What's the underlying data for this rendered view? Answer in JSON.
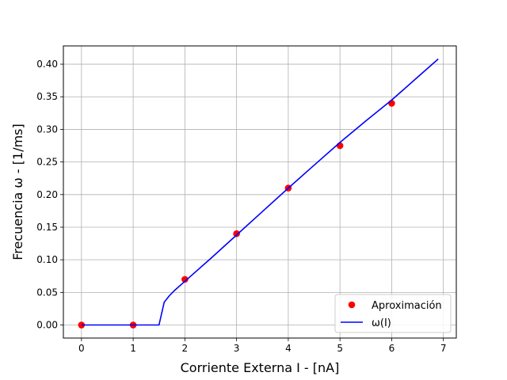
{
  "chart_data": {
    "type": "scatter",
    "title": "",
    "xlabel": "Corriente Externa I - [nA]",
    "ylabel": "Frecuencia ω - [1/ms]",
    "xlim": [
      -0.35,
      7.25
    ],
    "ylim": [
      -0.02,
      0.428
    ],
    "xticks": [
      0,
      1,
      2,
      3,
      4,
      5,
      6,
      7
    ],
    "yticks": [
      0.0,
      0.05,
      0.1,
      0.15,
      0.2,
      0.25,
      0.3,
      0.35,
      0.4
    ],
    "xtick_labels": [
      "0",
      "1",
      "2",
      "3",
      "4",
      "5",
      "6",
      "7"
    ],
    "ytick_labels": [
      "0.00",
      "0.05",
      "0.10",
      "0.15",
      "0.20",
      "0.25",
      "0.30",
      "0.35",
      "0.40"
    ],
    "grid": true,
    "legend_position": "lower-right",
    "series": [
      {
        "name": "Aproximación",
        "kind": "markers",
        "color": "#ff0000",
        "x": [
          0,
          1,
          2,
          3,
          4,
          5,
          6
        ],
        "y": [
          0.0,
          0.0,
          0.07,
          0.14,
          0.21,
          0.275,
          0.34
        ]
      },
      {
        "name": "ω(I)",
        "kind": "line",
        "color": "#0000ff",
        "x": [
          0,
          1,
          1.5,
          1.6,
          1.7,
          1.8,
          2.0,
          2.5,
          3.0,
          3.5,
          4.0,
          4.5,
          5.0,
          5.5,
          6.0,
          6.5,
          6.9
        ],
        "y": [
          0.0,
          0.0,
          0.0,
          0.035,
          0.045,
          0.053,
          0.067,
          0.102,
          0.138,
          0.174,
          0.21,
          0.245,
          0.28,
          0.313,
          0.345,
          0.38,
          0.408
        ]
      }
    ]
  }
}
